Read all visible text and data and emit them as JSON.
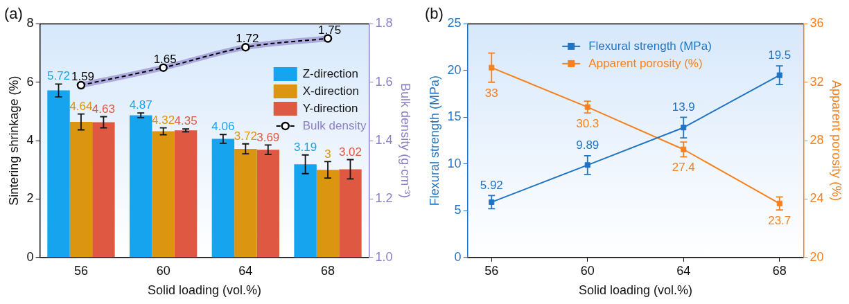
{
  "chart_data": [
    {
      "type": "bar",
      "title": "(a)",
      "categories": [
        "56",
        "60",
        "64",
        "68"
      ],
      "xlabel": "Solid loading (vol.%)",
      "ylabel": "Sintering shrinkage (%)",
      "y2label": "Bulk density (g·cm⁻³)",
      "ylim": [
        0,
        8
      ],
      "yticks": [
        0,
        2,
        4,
        6,
        8
      ],
      "y2lim": [
        1,
        1.8
      ],
      "y2ticks": [
        {
          "value": 1,
          "label": "1.0"
        },
        1.2,
        1.4,
        1.6,
        1.8
      ],
      "data_labels": true,
      "legend": "top right",
      "grid": false,
      "series": [
        {
          "name": "Z-direction",
          "color": "#16a4ef",
          "values": [
            5.72,
            4.87,
            4.06,
            3.19
          ],
          "errors": [
            0.22,
            0.08,
            0.15,
            0.32
          ]
        },
        {
          "name": "X-direction",
          "color": "#dc9510",
          "values": [
            4.64,
            4.32,
            3.72,
            3
          ],
          "errors": [
            0.27,
            0.12,
            0.17,
            0.28
          ]
        },
        {
          "name": "Y-direction",
          "color": "#df5842",
          "values": [
            4.63,
            4.35,
            3.69,
            3.02
          ],
          "errors": [
            0.19,
            0.05,
            0.16,
            0.33
          ]
        },
        {
          "name": "Bulk density",
          "type": "line",
          "axis": "y2",
          "color": "#000000",
          "line_style": "dashed",
          "marker": "circle",
          "values": [
            1.59,
            1.65,
            1.72,
            1.75
          ],
          "lower": [
            1.58,
            1.64,
            1.71,
            1.74
          ],
          "upper": [
            1.6,
            1.66,
            1.73,
            1.76
          ]
        }
      ]
    },
    {
      "type": "line",
      "title": "(b)",
      "x": [
        56,
        60,
        64,
        68
      ],
      "xlim": [
        55,
        69
      ],
      "xticks": [
        56,
        60,
        64,
        68
      ],
      "xlabel": "Solid loading (vol.%)",
      "ylabel": "Flexural strength (MPa)",
      "y2label": "Apparent porosity (%)",
      "ylim": [
        0,
        25
      ],
      "yticks": [
        0,
        5,
        10,
        15,
        20,
        25
      ],
      "y2lim": [
        20,
        36
      ],
      "y2ticks": [
        20,
        24,
        28,
        32,
        36
      ],
      "data_labels": true,
      "legend": "top",
      "grid": false,
      "marker": "square",
      "line_style": "solid",
      "series": [
        {
          "name": "Flexural strength (MPa)",
          "color": "#1f74c4",
          "values": [
            5.92,
            9.89,
            13.9,
            19.5
          ],
          "errors": [
            0.7,
            1.0,
            1.1,
            1.0
          ]
        },
        {
          "name": "Apparent porosity (%)",
          "color": "#f7801e",
          "axis": "y2",
          "values": [
            33,
            30.3,
            27.4,
            23.7
          ],
          "errors": [
            1.0,
            0.4,
            0.5,
            0.45
          ]
        }
      ]
    }
  ]
}
